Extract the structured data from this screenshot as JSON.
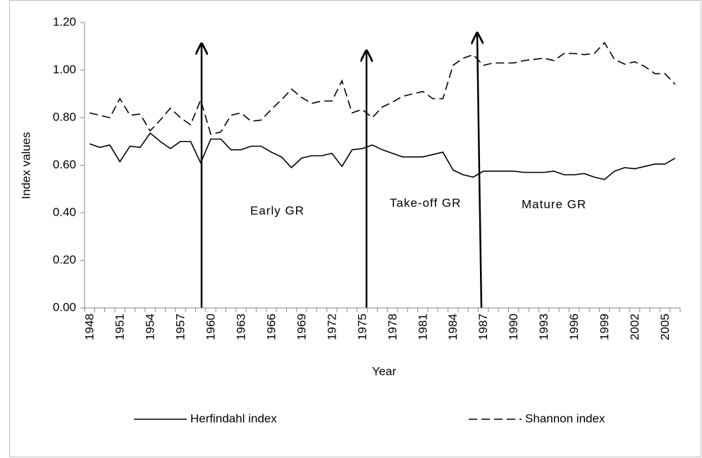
{
  "chart_data": {
    "type": "line",
    "y_label": "Index values",
    "x_label": "Year",
    "categories": [
      "1948",
      null,
      null,
      "1951",
      null,
      null,
      "1954",
      null,
      null,
      "1957",
      null,
      null,
      "1960",
      null,
      null,
      "1963",
      null,
      null,
      "1966",
      null,
      null,
      "1969",
      null,
      null,
      "1972",
      null,
      null,
      "1975",
      null,
      null,
      "1978",
      null,
      null,
      "1981",
      null,
      null,
      "1984",
      null,
      null,
      "1987",
      null,
      null,
      "1990",
      null,
      null,
      "1993",
      null,
      null,
      "1996",
      null,
      null,
      "1999",
      null,
      null,
      "2002",
      null,
      null,
      "2005",
      null
    ],
    "series": [
      {
        "name": "Herfindahl index",
        "color": "#000000",
        "style": "solid",
        "values": [
          0.69,
          0.675,
          0.685,
          0.615,
          0.68,
          0.675,
          0.735,
          0.7,
          0.67,
          0.7,
          0.7,
          0.61,
          0.71,
          0.71,
          0.665,
          0.665,
          0.68,
          0.68,
          0.655,
          0.635,
          0.59,
          0.63,
          0.64,
          0.64,
          0.65,
          0.595,
          0.665,
          0.67,
          0.685,
          0.665,
          0.65,
          0.635,
          0.635,
          0.635,
          0.645,
          0.655,
          0.58,
          0.56,
          0.55,
          0.575,
          0.575,
          0.575,
          0.575,
          0.57,
          0.57,
          0.57,
          0.575,
          0.56,
          0.56,
          0.565,
          0.55,
          0.54,
          0.575,
          0.59,
          0.585,
          0.595,
          0.605,
          0.605,
          0.63
        ]
      },
      {
        "name": "Shannon index",
        "color": "#000000",
        "style": "dashed",
        "values": [
          0.82,
          0.81,
          0.8,
          0.88,
          0.81,
          0.815,
          0.745,
          0.79,
          0.84,
          0.8,
          0.77,
          0.875,
          0.73,
          0.74,
          0.81,
          0.82,
          0.785,
          0.79,
          0.835,
          0.875,
          0.92,
          0.885,
          0.86,
          0.87,
          0.87,
          0.955,
          0.82,
          0.835,
          0.8,
          0.845,
          0.865,
          0.89,
          0.9,
          0.91,
          0.88,
          0.88,
          1.02,
          1.05,
          1.065,
          1.02,
          1.03,
          1.03,
          1.03,
          1.04,
          1.045,
          1.05,
          1.04,
          1.07,
          1.07,
          1.065,
          1.07,
          1.115,
          1.045,
          1.025,
          1.035,
          1.015,
          0.985,
          0.985,
          0.94
        ]
      }
    ],
    "ylim": [
      0,
      1.2
    ],
    "yticks": [
      {
        "value": 0,
        "label": "0.00"
      },
      {
        "value": 0.2,
        "label": "0.20"
      },
      {
        "value": 0.4,
        "label": "0.40"
      },
      {
        "value": 0.6,
        "label": "0.60"
      },
      {
        "value": 0.8,
        "label": "0.80"
      },
      {
        "value": 1.0,
        "label": "1.00"
      },
      {
        "value": 1.2,
        "label": "1.20"
      }
    ],
    "grid": false,
    "legend": "bottom",
    "annotations": [
      "Early GR",
      "Take-off GR",
      "Mature GR"
    ]
  }
}
